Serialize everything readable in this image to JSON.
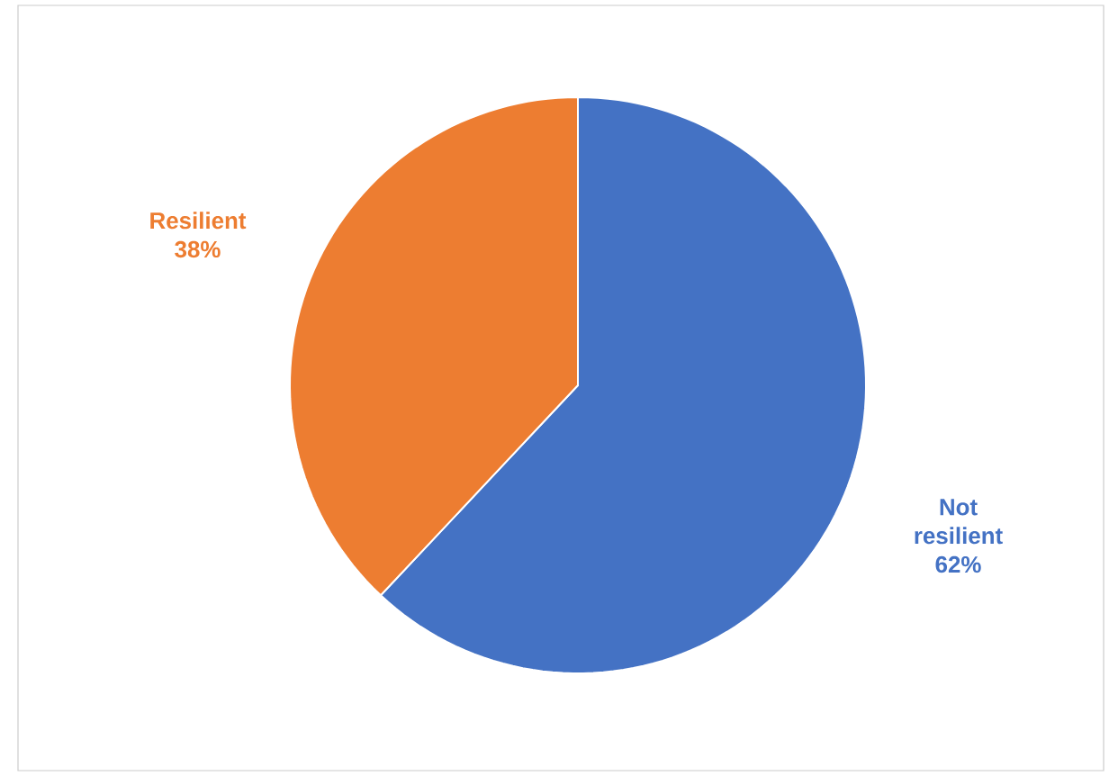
{
  "chart_data": {
    "type": "pie",
    "categories": [
      "Not resilient",
      "Resilient"
    ],
    "values": [
      62,
      38
    ],
    "value_labels": [
      "62%",
      "38%"
    ],
    "colors": [
      "#4472c4",
      "#ed7d31"
    ]
  }
}
